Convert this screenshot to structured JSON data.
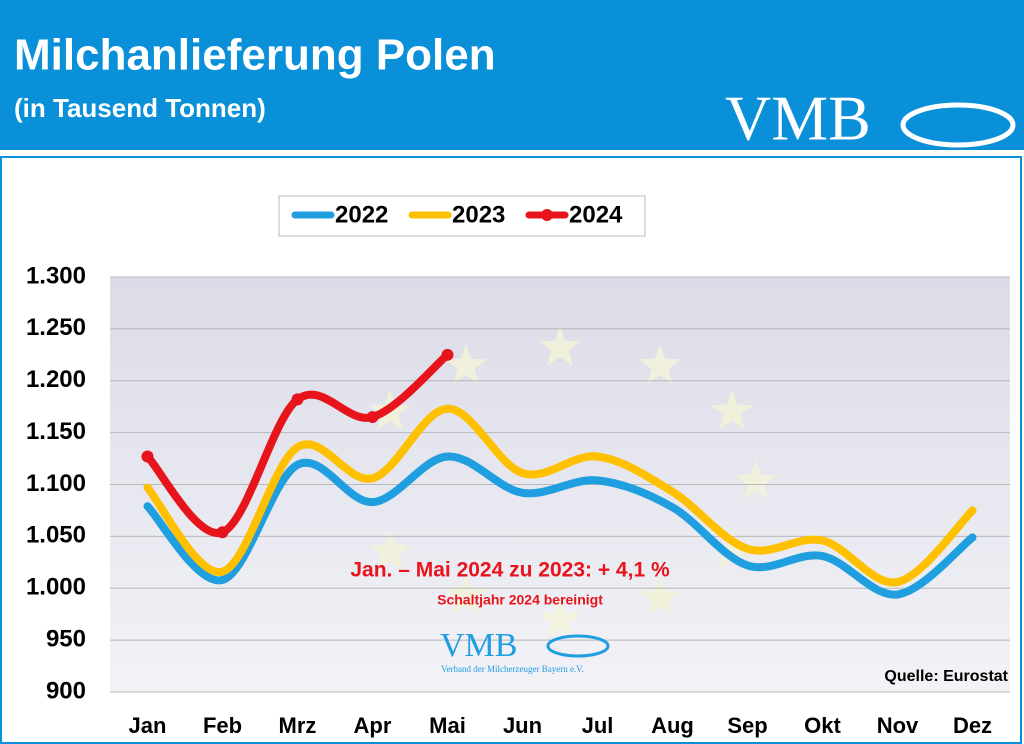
{
  "header": {
    "title": "Milchanlieferung Polen",
    "subtitle": "(in Tausend Tonnen)",
    "logo": "VMB"
  },
  "chart_data": {
    "type": "line",
    "categories": [
      "Jan",
      "Feb",
      "Mrz",
      "Apr",
      "Mai",
      "Jun",
      "Jul",
      "Aug",
      "Sep",
      "Okt",
      "Nov",
      "Dez"
    ],
    "series": [
      {
        "name": "2022",
        "color": "#1f9ee0",
        "values": [
          1079,
          1008,
          1119,
          1083,
          1127,
          1092,
          1104,
          1078,
          1022,
          1031,
          994,
          1049
        ]
      },
      {
        "name": "2023",
        "color": "#ffc000",
        "values": [
          1097,
          1016,
          1136,
          1106,
          1173,
          1111,
          1127,
          1093,
          1038,
          1046,
          1006,
          1075
        ]
      },
      {
        "name": "2024",
        "color": "#e8141c",
        "markers": true,
        "values": [
          1127,
          1054,
          1182,
          1165,
          1225,
          null,
          null,
          null,
          null,
          null,
          null,
          null
        ]
      }
    ],
    "ylim": [
      900,
      1300
    ],
    "yticks": [
      900,
      950,
      {
        "value": 1000,
        "label": "1.000"
      },
      {
        "value": 1050,
        "label": "1.050"
      },
      {
        "value": 1100,
        "label": "1.100"
      },
      {
        "value": 1150,
        "label": "1.150"
      },
      {
        "value": 1200,
        "label": "1.200"
      },
      {
        "value": 1250,
        "label": "1.250"
      },
      {
        "value": 1300,
        "label": "1.300"
      }
    ],
    "grid": true,
    "annotation": "Jan. – Mai 2024 zu 2023: + 4,1 %",
    "annotation_note": "Schaltjahr 2024 bereinigt",
    "source": "Quelle: Eurostat",
    "watermark": {
      "logo": "VMB",
      "tagline": "Verband der Milcherzeuger Bayern e.V."
    }
  }
}
